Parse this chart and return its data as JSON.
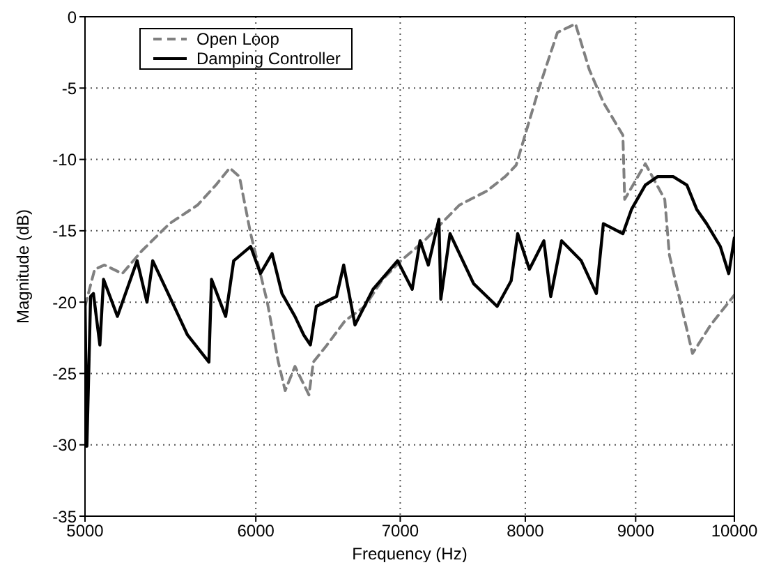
{
  "chart_data": {
    "type": "line",
    "xlabel": "Frequency (Hz)",
    "ylabel": "Magnitude (dB)",
    "log": "x",
    "xlim": [
      5000,
      10000
    ],
    "xticks": [
      5000,
      6000,
      7000,
      8000,
      9000,
      10000
    ],
    "ylim": [
      -35,
      0
    ],
    "yticks": [
      -35,
      -30,
      -25,
      -20,
      -15,
      -10,
      -5,
      0
    ],
    "grid": true,
    "legend": "top left",
    "marker": "none",
    "series": [
      {
        "name": "Open Loop",
        "color": "#808080",
        "line_style": "dashed",
        "x": [
          5000,
          5052,
          5105,
          5203,
          5313,
          5472,
          5638,
          5749,
          5835,
          5896,
          5967,
          6074,
          6146,
          6191,
          6256,
          6350,
          6380,
          6474,
          6600,
          6740,
          6870,
          7005,
          7183,
          7313,
          7456,
          7680,
          7830,
          7922,
          8118,
          8279,
          8440,
          8565,
          8695,
          8878,
          8895,
          9093,
          9284,
          9330,
          9563,
          9750,
          9940,
          10000
        ],
        "values": [
          -20.3,
          -17.7,
          -17.4,
          -18,
          -16.4,
          -14.5,
          -13.2,
          -11.8,
          -10.6,
          -11.2,
          -15.2,
          -20,
          -24.2,
          -26.2,
          -24.5,
          -26.5,
          -24.2,
          -23,
          -21.3,
          -20.3,
          -18.4,
          -17.1,
          -15.7,
          -14.5,
          -13.2,
          -12.2,
          -11.2,
          -10.4,
          -5,
          -1.1,
          -0.5,
          -3.7,
          -6,
          -8.3,
          -12.8,
          -10.3,
          -12.8,
          -16.7,
          -23.6,
          -21.6,
          -20,
          -19.5
        ]
      },
      {
        "name": "Damping Controller",
        "color": "#000000",
        "line_style": "solid",
        "x": [
          5000,
          5010,
          5030,
          5045,
          5080,
          5100,
          5176,
          5286,
          5342,
          5375,
          5472,
          5578,
          5707,
          5723,
          5810,
          5860,
          5967,
          6030,
          6105,
          6170,
          6256,
          6315,
          6360,
          6400,
          6540,
          6590,
          6670,
          6800,
          6980,
          7090,
          7150,
          7213,
          7295,
          7310,
          7382,
          7570,
          7763,
          7880,
          7935,
          8035,
          8160,
          8220,
          8316,
          8492,
          8630,
          8695,
          8878,
          8960,
          9093,
          9214,
          9367,
          9506,
          9606,
          9708,
          9851,
          9940,
          10000
        ],
        "values": [
          -20,
          -30.1,
          -19.6,
          -19.4,
          -23,
          -18.4,
          -21,
          -17.1,
          -20,
          -17.1,
          -19.6,
          -22.3,
          -24.2,
          -18.4,
          -21,
          -17.1,
          -16.1,
          -18,
          -16.6,
          -19.4,
          -21,
          -22.3,
          -23,
          -20.3,
          -19.6,
          -17.4,
          -21.6,
          -19.1,
          -17.1,
          -19.1,
          -15.7,
          -17.4,
          -14.2,
          -19.8,
          -15.2,
          -18.7,
          -20.3,
          -18.5,
          -15.2,
          -17.7,
          -15.7,
          -19.6,
          -15.7,
          -17.1,
          -19.4,
          -14.5,
          -15.2,
          -13.5,
          -11.8,
          -11.2,
          -11.2,
          -11.8,
          -13.5,
          -14.5,
          -16.1,
          -18,
          -15.5
        ]
      }
    ]
  }
}
